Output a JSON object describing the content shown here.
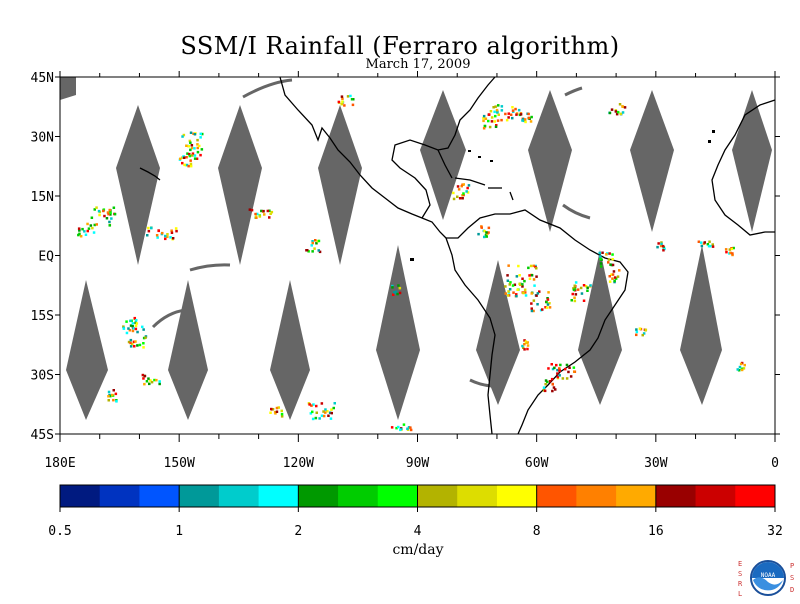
{
  "title": "SSM/I Rainfall (Ferraro algorithm)",
  "date": "March 17, 2009",
  "map": {
    "lon_range": [
      180,
      360
    ],
    "lat_range": [
      -45,
      45
    ],
    "lat_labels": [
      "45N",
      "30N",
      "15N",
      "EQ",
      "15S",
      "30S",
      "45S"
    ],
    "lon_labels": [
      "180E",
      "150W",
      "120W",
      "90W",
      "60W",
      "30W",
      "0"
    ]
  },
  "colorbar": {
    "unit": "cm/day",
    "tick_labels": [
      "0.5",
      "1",
      "2",
      "4",
      "8",
      "16",
      "32"
    ],
    "colors": [
      "#001a80",
      "#0033c0",
      "#0055ff",
      "#009999",
      "#00cccc",
      "#00ffff",
      "#009900",
      "#00cc00",
      "#00ff00",
      "#b3b300",
      "#dddd00",
      "#ffff00",
      "#ff5500",
      "#ff8000",
      "#ffaa00",
      "#990000",
      "#cc0000",
      "#ff0000"
    ]
  },
  "logo": {
    "left_letters": "ESRL",
    "right_letters": "PSD",
    "name": "NOAA"
  }
}
